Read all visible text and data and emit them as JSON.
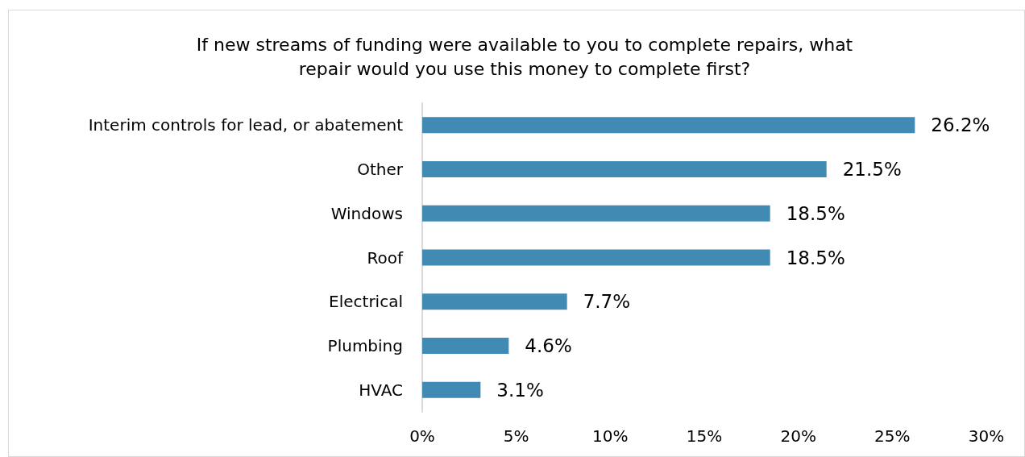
{
  "chart_data": {
    "type": "bar",
    "orientation": "horizontal",
    "title": "If new streams of funding were available to you to complete repairs, what\nrepair would you use this money to complete first?",
    "categories": [
      "Interim controls for lead, or abatement",
      "Other",
      "Windows",
      "Roof",
      "Electrical",
      "Plumbing",
      "HVAC"
    ],
    "values": [
      26.2,
      21.5,
      18.5,
      18.5,
      7.7,
      4.6,
      3.1
    ],
    "value_labels": [
      "26.2%",
      "21.5%",
      "18.5%",
      "18.5%",
      "7.7%",
      "4.6%",
      "3.1%"
    ],
    "color": "#418ab3",
    "xlim": [
      0,
      30
    ],
    "xticks": [
      {
        "value": 0,
        "label": "0%"
      },
      {
        "value": 5,
        "label": "5%"
      },
      {
        "value": 10,
        "label": "10%"
      },
      {
        "value": 15,
        "label": "15%"
      },
      {
        "value": 20,
        "label": "20%"
      },
      {
        "value": 25,
        "label": "25%"
      },
      {
        "value": 30,
        "label": "30%"
      }
    ],
    "grid": false
  }
}
